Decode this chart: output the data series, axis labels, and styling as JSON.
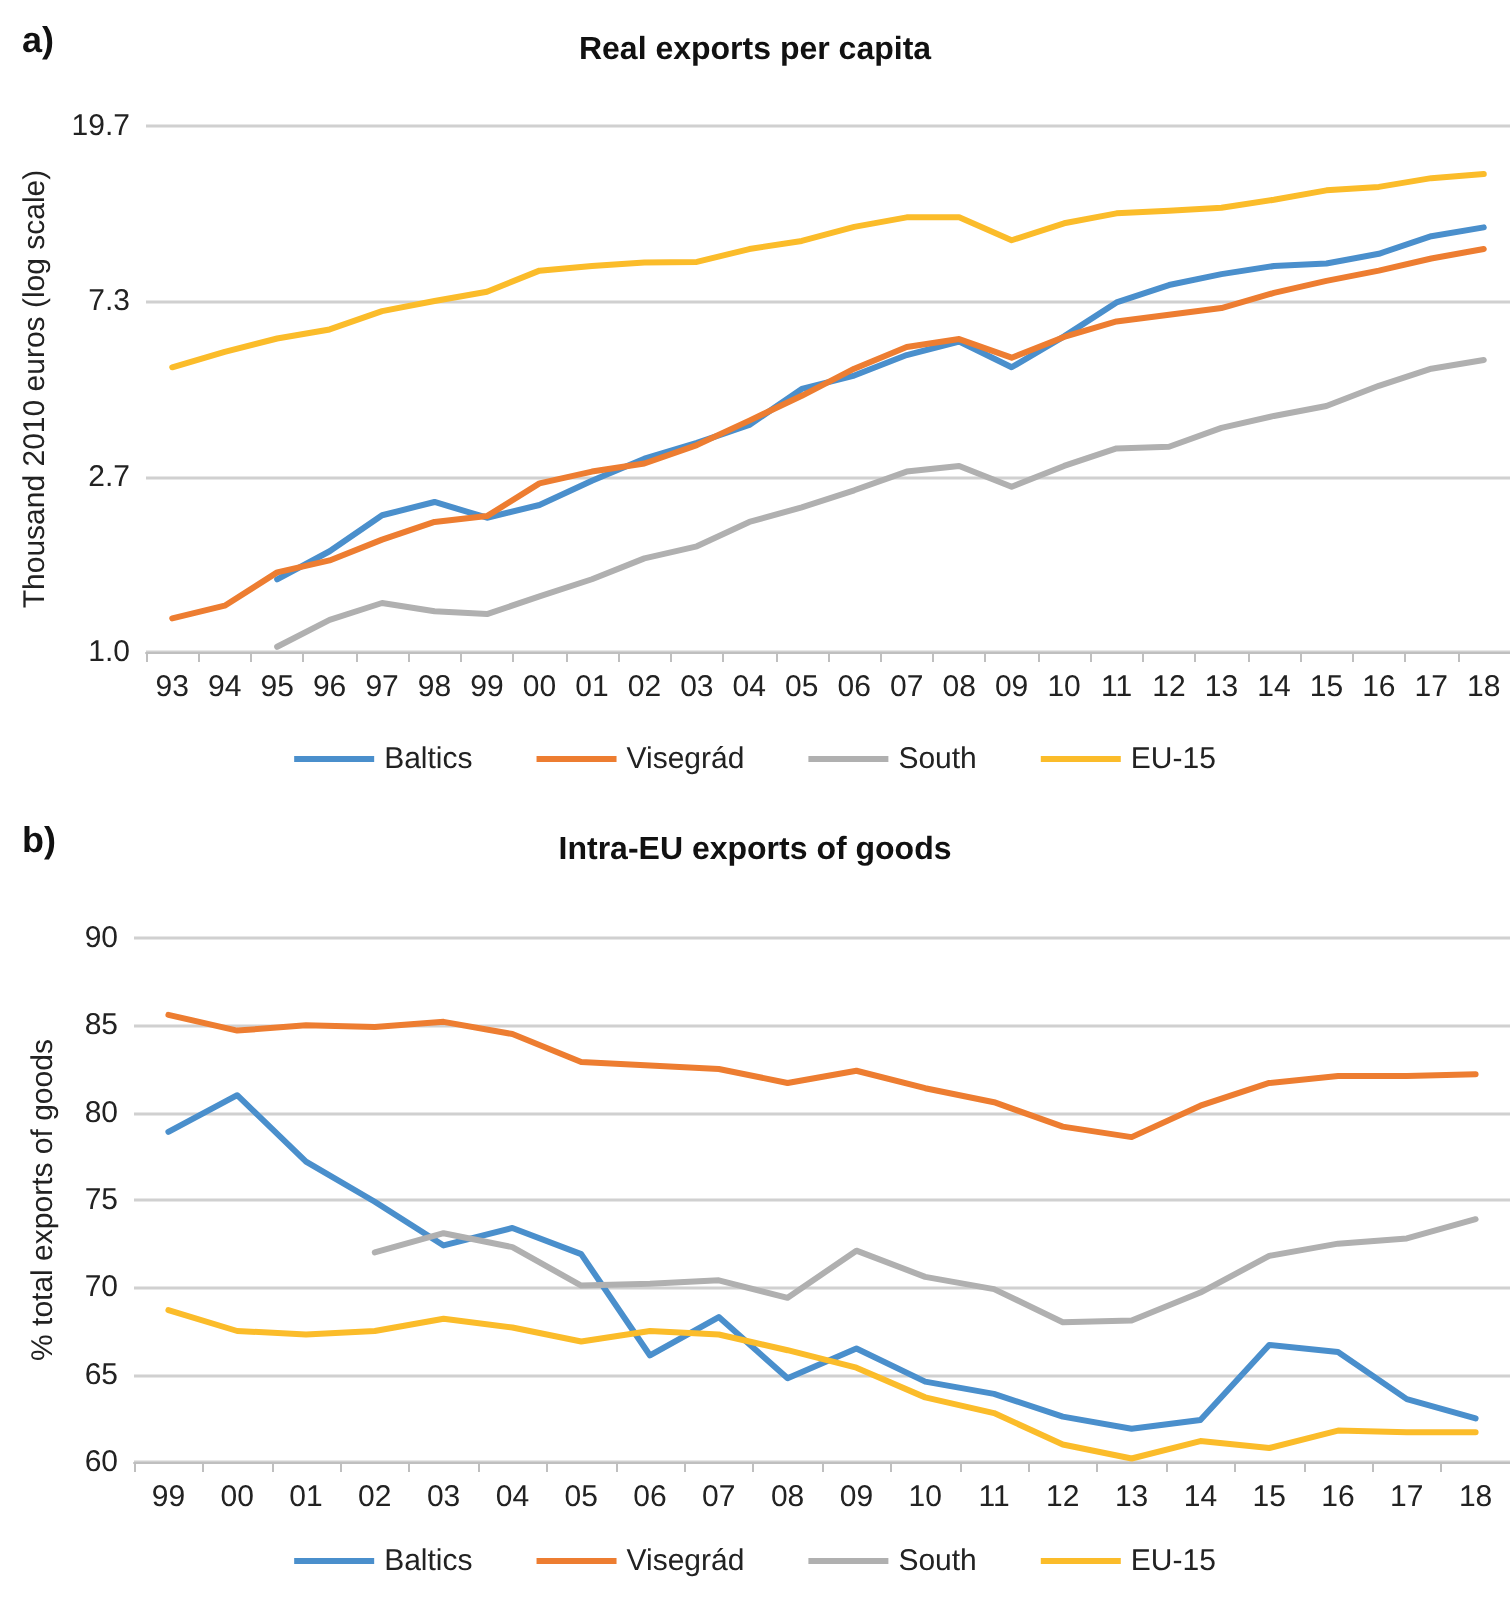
{
  "chart_data": [
    {
      "type": "line",
      "title": "Real exports per capita",
      "annotations": [
        "a)"
      ],
      "ylabel": "Thousand 2010 euros (log scale)",
      "log": "y",
      "categories": [
        "93",
        "94",
        "95",
        "96",
        "97",
        "98",
        "99",
        "00",
        "01",
        "02",
        "03",
        "04",
        "05",
        "06",
        "07",
        "08",
        "09",
        "10",
        "11",
        "12",
        "13",
        "14",
        "15",
        "16",
        "17",
        "18"
      ],
      "ylim": [
        1,
        19.7
      ],
      "yticks": [
        {
          "value": 1,
          "label": "1.0"
        },
        2.7,
        7.3,
        19.7
      ],
      "grid": "y",
      "legend": "bottom",
      "marker": "none",
      "line_style": "solid",
      "series": [
        {
          "name": "Baltics",
          "color": "#4a8fcc",
          "values": [
            null,
            null,
            1.51,
            1.77,
            2.17,
            2.34,
            2.14,
            2.3,
            2.64,
            2.99,
            3.27,
            3.62,
            4.44,
            4.79,
            5.38,
            5.81,
            5.02,
            5.98,
            7.25,
            8.0,
            8.51,
            8.91,
            9.04,
            9.55,
            10.55,
            11.09
          ]
        },
        {
          "name": "Visegrád",
          "color": "#ed7d31",
          "values": [
            1.21,
            1.3,
            1.57,
            1.68,
            1.89,
            2.09,
            2.16,
            2.6,
            2.78,
            2.91,
            3.23,
            3.71,
            4.27,
            4.98,
            5.63,
            5.89,
            5.3,
            5.96,
            6.51,
            6.76,
            7.02,
            7.65,
            8.19,
            8.68,
            9.3,
            9.81
          ]
        },
        {
          "name": "South",
          "color": "#b0b0b0",
          "values": [
            null,
            null,
            1.03,
            1.2,
            1.32,
            1.26,
            1.24,
            1.37,
            1.51,
            1.7,
            1.82,
            2.09,
            2.27,
            2.5,
            2.78,
            2.87,
            2.55,
            2.87,
            3.17,
            3.2,
            3.56,
            3.81,
            4.03,
            4.52,
            4.98,
            5.23
          ]
        },
        {
          "name": "EU-15",
          "color": "#fbbc2a",
          "values": [
            5.02,
            5.48,
            5.91,
            6.22,
            6.9,
            7.31,
            7.7,
            8.68,
            8.91,
            9.09,
            9.12,
            9.81,
            10.27,
            11.12,
            11.74,
            11.74,
            10.31,
            11.35,
            12.01,
            12.19,
            12.39,
            12.97,
            13.68,
            13.95,
            14.66,
            15.0
          ]
        }
      ]
    },
    {
      "type": "line",
      "title": "Intra-EU exports of goods",
      "annotations": [
        "b)"
      ],
      "ylabel": "% total exports of goods",
      "categories": [
        "99",
        "00",
        "01",
        "02",
        "03",
        "04",
        "05",
        "06",
        "07",
        "08",
        "09",
        "10",
        "11",
        "12",
        "13",
        "14",
        "15",
        "16",
        "17",
        "18"
      ],
      "ylim": [
        60,
        90
      ],
      "yticks": [
        60,
        65,
        70,
        75,
        80,
        85,
        90
      ],
      "grid": "y",
      "legend": "bottom",
      "marker": "none",
      "line_style": "solid",
      "series": [
        {
          "name": "Baltics",
          "color": "#4a8fcc",
          "values": [
            78.9,
            81.0,
            77.2,
            74.9,
            72.4,
            73.4,
            71.9,
            66.1,
            68.3,
            64.8,
            66.5,
            64.6,
            63.9,
            62.6,
            61.9,
            62.4,
            66.7,
            66.3,
            63.6,
            62.5
          ]
        },
        {
          "name": "Visegrád",
          "color": "#ed7d31",
          "values": [
            85.6,
            84.7,
            85.0,
            84.9,
            85.2,
            84.5,
            82.9,
            82.7,
            82.5,
            81.7,
            82.4,
            81.4,
            80.6,
            79.2,
            78.6,
            80.4,
            81.7,
            82.1,
            82.1,
            82.2
          ]
        },
        {
          "name": "South",
          "color": "#b0b0b0",
          "values": [
            null,
            null,
            null,
            72.0,
            73.1,
            72.3,
            70.1,
            70.2,
            70.4,
            69.4,
            72.1,
            70.6,
            69.9,
            68.0,
            68.1,
            69.7,
            71.8,
            72.5,
            72.8,
            73.9
          ]
        },
        {
          "name": "EU-15",
          "color": "#fbbc2a",
          "values": [
            68.7,
            67.5,
            67.3,
            67.5,
            68.2,
            67.7,
            66.9,
            67.5,
            67.3,
            66.4,
            65.4,
            63.7,
            62.8,
            61.0,
            60.2,
            61.2,
            60.8,
            61.8,
            61.7,
            61.7
          ]
        }
      ]
    }
  ]
}
